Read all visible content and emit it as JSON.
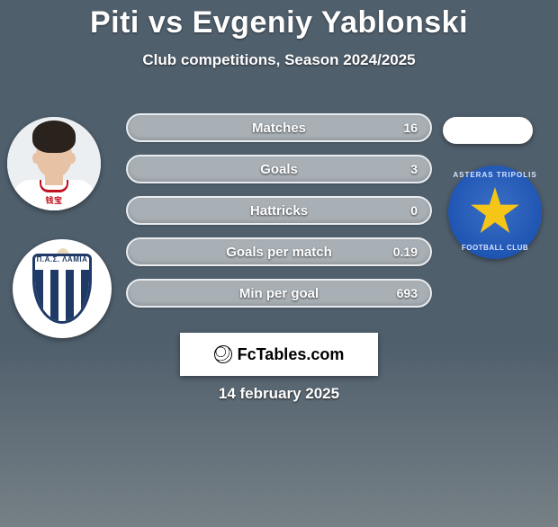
{
  "title": {
    "player1": "Piti",
    "vs": "vs",
    "player2": "Evgeniy Yablonski",
    "color": "#ffffff",
    "fontsize": 34
  },
  "subtitle": {
    "competition": "Club competitions,",
    "season": "Season 2024/2025"
  },
  "bars": {
    "bar_bg": "#a8b0b6",
    "bar_border": "#e8ecef",
    "items": [
      {
        "label": "Matches",
        "right_value": "16"
      },
      {
        "label": "Goals",
        "right_value": "3"
      },
      {
        "label": "Hattricks",
        "right_value": "0"
      },
      {
        "label": "Goals per match",
        "right_value": "0.19"
      },
      {
        "label": "Min per goal",
        "right_value": "693"
      }
    ]
  },
  "left_player": {
    "photo_alt": "Piti headshot",
    "shirt_sponsor": "钱宝"
  },
  "left_crest": {
    "top_text": "Π.Α.Σ. ΛΑΜΙΑ",
    "primary": "#1f3a66"
  },
  "right_crest": {
    "top_text": "ASTERAS TRIPOLIS",
    "bottom_text": "FOOTBALL CLUB",
    "bg": "#1f55b3",
    "star": "#f5c518"
  },
  "fctables": {
    "label": "FcTables.com"
  },
  "date": "14 february 2025"
}
